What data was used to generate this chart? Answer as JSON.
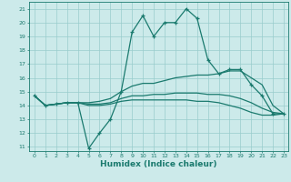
{
  "xlabel": "Humidex (Indice chaleur)",
  "bg_color": "#cceaea",
  "line_color": "#1a7a6e",
  "grid_color": "#99cccc",
  "xlim": [
    -0.5,
    23.4
  ],
  "ylim": [
    10.7,
    21.5
  ],
  "yticks": [
    11,
    12,
    13,
    14,
    15,
    16,
    17,
    18,
    19,
    20,
    21
  ],
  "xticks": [
    0,
    1,
    2,
    3,
    4,
    5,
    6,
    7,
    8,
    9,
    10,
    11,
    12,
    13,
    14,
    15,
    16,
    17,
    18,
    19,
    20,
    21,
    22,
    23
  ],
  "series": [
    {
      "y": [
        14.7,
        14.0,
        14.1,
        14.2,
        14.2,
        10.9,
        12.0,
        13.0,
        15.0,
        19.3,
        20.5,
        19.0,
        20.0,
        20.0,
        21.0,
        20.3,
        17.3,
        16.3,
        16.6,
        16.6,
        15.5,
        14.7,
        13.4,
        13.4
      ],
      "marker": true
    },
    {
      "y": [
        14.7,
        14.0,
        14.1,
        14.2,
        14.2,
        14.2,
        14.3,
        14.5,
        15.0,
        15.4,
        15.6,
        15.6,
        15.8,
        16.0,
        16.1,
        16.2,
        16.2,
        16.3,
        16.5,
        16.5,
        16.0,
        15.5,
        14.0,
        13.4
      ],
      "marker": false
    },
    {
      "y": [
        14.7,
        14.0,
        14.1,
        14.2,
        14.2,
        14.1,
        14.1,
        14.2,
        14.5,
        14.7,
        14.7,
        14.8,
        14.8,
        14.9,
        14.9,
        14.9,
        14.8,
        14.8,
        14.7,
        14.5,
        14.2,
        13.8,
        13.5,
        13.4
      ],
      "marker": false
    },
    {
      "y": [
        14.7,
        14.0,
        14.1,
        14.2,
        14.2,
        14.0,
        14.0,
        14.1,
        14.3,
        14.4,
        14.4,
        14.4,
        14.4,
        14.4,
        14.4,
        14.3,
        14.3,
        14.2,
        14.0,
        13.8,
        13.5,
        13.3,
        13.3,
        13.4
      ],
      "marker": false
    }
  ]
}
